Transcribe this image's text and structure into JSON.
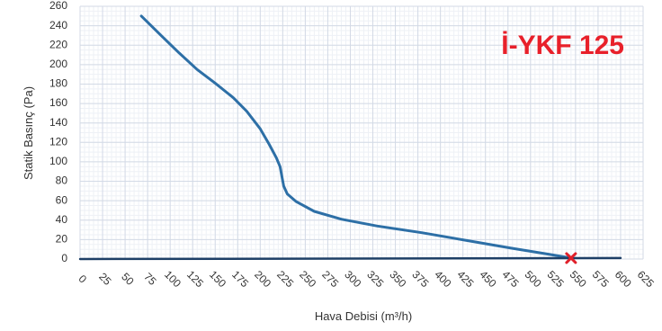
{
  "chart_data": {
    "type": "line",
    "title": "İ-YKF 125",
    "xlabel": "Hava Debisi (m³/h)",
    "ylabel": "Statik Basınç (Pa)",
    "xlim": [
      0,
      625
    ],
    "ylim": [
      0,
      260
    ],
    "x_ticks": [
      "0",
      "25",
      "50",
      "75",
      "100",
      "125",
      "150",
      "175",
      "200",
      "225",
      "250",
      "275",
      "300",
      "325",
      "350",
      "375",
      "400",
      "425",
      "450",
      "475",
      "500",
      "525",
      "550",
      "575",
      "600",
      "625"
    ],
    "y_ticks": [
      "0",
      "20",
      "40",
      "60",
      "80",
      "100",
      "120",
      "140",
      "160",
      "180",
      "200",
      "220",
      "240",
      "260"
    ],
    "grid": true,
    "series": [
      {
        "color": "#2d6fa6",
        "x": [
          68,
          90,
          110,
          130,
          150,
          170,
          185,
          200,
          210,
          218,
          222,
          224,
          226,
          230,
          240,
          260,
          290,
          330,
          380,
          430,
          480,
          520,
          545
        ],
        "y": [
          250,
          230,
          212,
          195,
          181,
          166,
          152,
          134,
          118,
          104,
          95,
          85,
          75,
          67,
          59,
          49,
          41,
          34,
          27,
          19,
          11,
          5,
          1
        ]
      },
      {
        "color": "#1e3f66",
        "x": [
          0,
          600
        ],
        "y": [
          0,
          1
        ]
      }
    ],
    "annotations": [
      {
        "type": "marker",
        "symbol": "x",
        "color": "#e0202a",
        "x": 545,
        "y": 1
      }
    ]
  }
}
